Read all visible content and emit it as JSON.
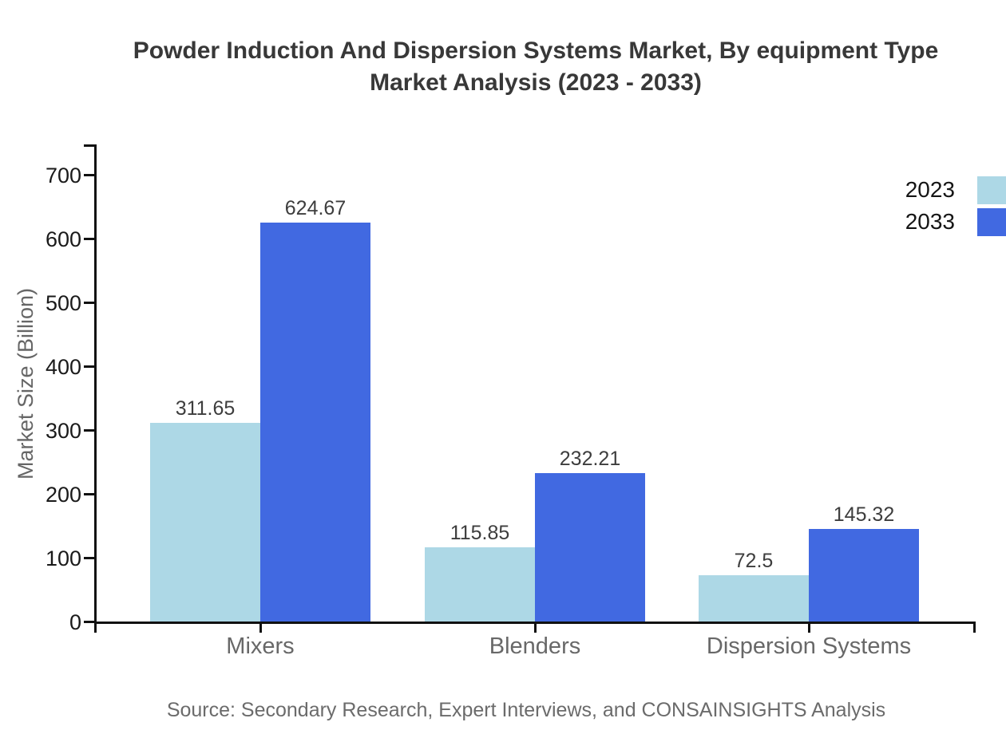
{
  "title": {
    "line1": "Powder Induction And Dispersion Systems Market, By equipment Type",
    "line2": "Market Analysis (2023 - 2033)"
  },
  "source_line": "Source: Secondary Research, Expert Interviews, and CONSAINSIGHTS Analysis",
  "colors": {
    "series_2023": "#ADD8E6",
    "series_2033": "#4169E1",
    "axis": "#111111",
    "title_text": "#383838",
    "value_label_text": "#3d3d3d",
    "muted_text": "#666666"
  },
  "chart_data": {
    "type": "bar",
    "title": "Powder Induction And Dispersion Systems Market, By equipment Type Market Analysis (2023 - 2033)",
    "categories": [
      "Mixers",
      "Blenders",
      "Dispersion Systems"
    ],
    "series": [
      {
        "name": "2023",
        "color": "#ADD8E6",
        "values": [
          311.65,
          115.85,
          72.5
        ]
      },
      {
        "name": "2033",
        "color": "#4169E1",
        "values": [
          624.67,
          232.21,
          145.32
        ]
      }
    ],
    "value_labels": [
      [
        "311.65",
        "115.85",
        "72.5"
      ],
      [
        "624.67",
        "232.21",
        "145.32"
      ]
    ],
    "xlabel": "",
    "ylabel": "Market Size (Billion)",
    "ylim": [
      0,
      750
    ],
    "yticks": [
      0,
      100,
      200,
      300,
      400,
      500,
      600,
      700
    ],
    "grid": false,
    "legend_position": "top-right",
    "legend_entries": [
      "2023",
      "2033"
    ]
  }
}
